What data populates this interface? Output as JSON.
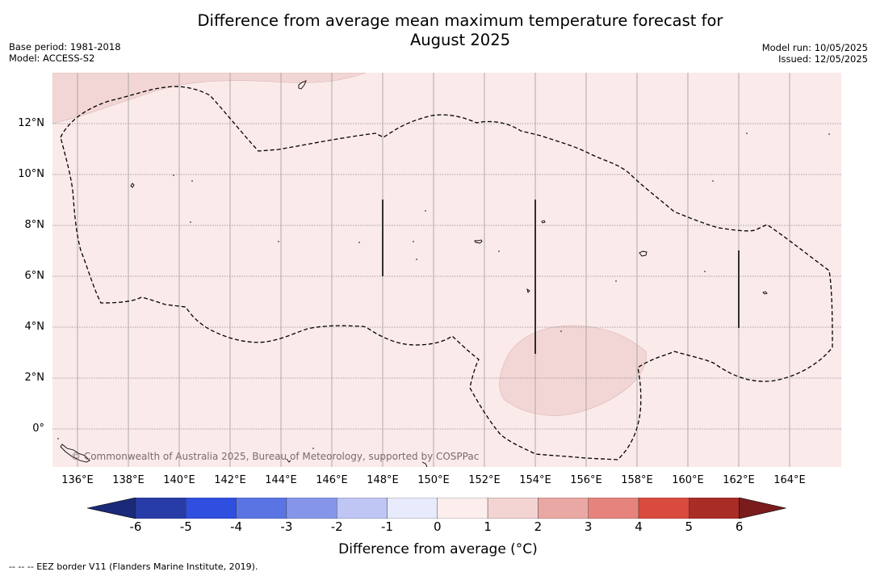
{
  "title_line1": "Difference from average mean maximum temperature forecast for",
  "title_line2": "August 2025",
  "meta_left": {
    "base_period": "Base period: 1981-2018",
    "model": "Model: ACCESS-S2"
  },
  "meta_right": {
    "model_run": "Model run: 10/05/2025",
    "issued": "Issued: 12/05/2025"
  },
  "longitude_labels": [
    "136°E",
    "138°E",
    "140°E",
    "142°E",
    "144°E",
    "146°E",
    "148°E",
    "150°E",
    "152°E",
    "154°E",
    "156°E",
    "158°E",
    "160°E",
    "162°E",
    "164°E"
  ],
  "latitude_labels": [
    "12°N",
    "10°N",
    "8°N",
    "6°N",
    "4°N",
    "2°N",
    "0°"
  ],
  "copyright": "© Commonwealth of Australia 2025, Bureau of Meteorology, supported by COSPPac",
  "colorbar": {
    "ticks": [
      "-6",
      "-5",
      "-4",
      "-3",
      "-2",
      "-1",
      "0",
      "1",
      "2",
      "3",
      "4",
      "5",
      "6"
    ],
    "colors": [
      "#1a2a78",
      "#283ca8",
      "#2f4fe0",
      "#5a74e4",
      "#8596ea",
      "#bfc6f4",
      "#e8ebfb",
      "#fdeeee",
      "#f3d4d3",
      "#eaa8a4",
      "#e5837c",
      "#d94a3f",
      "#aa2c27",
      "#7a1c1c"
    ],
    "label": "Difference from average (°C)"
  },
  "footnote": "--  --  -- EEZ border V11 (Flanders Marine Institute, 2019)."
}
